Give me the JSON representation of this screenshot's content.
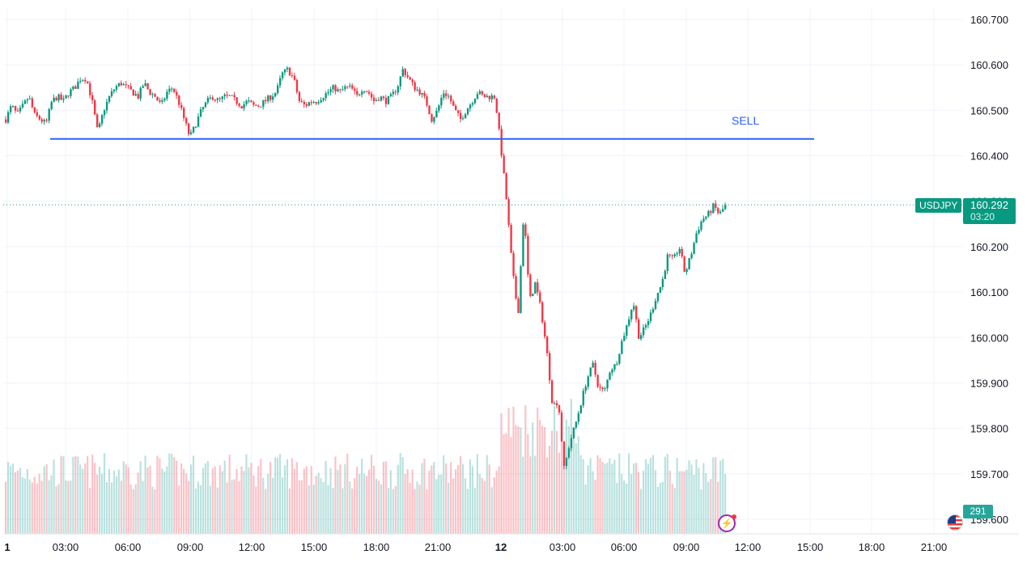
{
  "chart_data": {
    "type": "candlestick",
    "symbol": "USDJPY",
    "last_price": "160.292",
    "countdown": "03:20",
    "last_volume": "291",
    "y_ticks": [
      "160.700",
      "160.600",
      "160.500",
      "160.400",
      "160.300",
      "160.200",
      "160.100",
      "160.000",
      "159.900",
      "159.800",
      "159.700",
      "159.600"
    ],
    "x_ticks": [
      "1",
      "03:00",
      "06:00",
      "09:00",
      "12:00",
      "15:00",
      "18:00",
      "21:00",
      "12",
      "03:00",
      "06:00",
      "09:00",
      "12:00",
      "15:00",
      "18:00",
      "21:00"
    ],
    "x_ticks_bold": [
      "1",
      "12"
    ],
    "ylim": [
      159.59,
      160.72
    ],
    "horizontal_line": {
      "price": 160.437,
      "label": "SELL",
      "color": "#2962ff"
    },
    "price_path": [
      [
        0,
        160.48
      ],
      [
        1,
        160.51
      ],
      [
        2,
        160.49
      ],
      [
        3,
        160.51
      ],
      [
        4,
        160.53
      ],
      [
        5,
        160.49
      ],
      [
        6,
        160.48
      ],
      [
        7,
        160.47
      ],
      [
        8,
        160.52
      ],
      [
        9,
        160.53
      ],
      [
        10,
        160.52
      ],
      [
        11,
        160.54
      ],
      [
        12,
        160.55
      ],
      [
        13,
        160.57
      ],
      [
        14,
        160.57
      ],
      [
        15,
        160.52
      ],
      [
        16,
        160.45
      ],
      [
        17,
        160.5
      ],
      [
        18,
        160.53
      ],
      [
        19,
        160.55
      ],
      [
        20,
        160.56
      ],
      [
        21,
        160.55
      ],
      [
        22,
        160.54
      ],
      [
        23,
        160.53
      ],
      [
        24,
        160.56
      ],
      [
        25,
        160.54
      ],
      [
        26,
        160.53
      ],
      [
        27,
        160.51
      ],
      [
        28,
        160.54
      ],
      [
        29,
        160.55
      ],
      [
        30,
        160.52
      ],
      [
        31,
        160.48
      ],
      [
        32,
        160.44
      ],
      [
        33,
        160.47
      ],
      [
        34,
        160.5
      ],
      [
        35,
        160.52
      ],
      [
        36,
        160.53
      ],
      [
        37,
        160.52
      ],
      [
        38,
        160.53
      ],
      [
        39,
        160.53
      ],
      [
        40,
        160.52
      ],
      [
        41,
        160.51
      ],
      [
        42,
        160.52
      ],
      [
        43,
        160.51
      ],
      [
        44,
        160.51
      ],
      [
        45,
        160.52
      ],
      [
        46,
        160.53
      ],
      [
        47,
        160.54
      ],
      [
        48,
        160.58
      ],
      [
        49,
        160.59
      ],
      [
        50,
        160.57
      ],
      [
        51,
        160.52
      ],
      [
        52,
        160.51
      ],
      [
        53,
        160.52
      ],
      [
        54,
        160.52
      ],
      [
        55,
        160.53
      ],
      [
        56,
        160.54
      ],
      [
        57,
        160.55
      ],
      [
        58,
        160.54
      ],
      [
        59,
        160.55
      ],
      [
        60,
        160.55
      ],
      [
        61,
        160.53
      ],
      [
        62,
        160.55
      ],
      [
        63,
        160.54
      ],
      [
        64,
        160.52
      ],
      [
        65,
        160.53
      ],
      [
        66,
        160.52
      ],
      [
        67,
        160.53
      ],
      [
        68,
        160.55
      ],
      [
        69,
        160.59
      ],
      [
        70,
        160.57
      ],
      [
        71,
        160.55
      ],
      [
        72,
        160.54
      ],
      [
        73,
        160.52
      ],
      [
        74,
        160.48
      ],
      [
        75,
        160.5
      ],
      [
        76,
        160.54
      ],
      [
        77,
        160.53
      ],
      [
        78,
        160.5
      ],
      [
        79,
        160.48
      ],
      [
        80,
        160.5
      ],
      [
        81,
        160.52
      ],
      [
        82,
        160.54
      ],
      [
        83,
        160.53
      ],
      [
        84,
        160.53
      ],
      [
        85,
        160.53
      ],
      [
        86,
        160.42
      ],
      [
        87,
        160.3
      ],
      [
        88,
        160.15
      ],
      [
        89,
        160.05
      ],
      [
        90,
        160.28
      ],
      [
        91,
        160.08
      ],
      [
        92,
        160.12
      ],
      [
        93,
        160.06
      ],
      [
        94,
        159.97
      ],
      [
        95,
        159.85
      ],
      [
        96,
        159.86
      ],
      [
        97,
        159.71
      ],
      [
        98,
        159.77
      ],
      [
        99,
        159.81
      ],
      [
        100,
        159.86
      ],
      [
        101,
        159.91
      ],
      [
        102,
        159.94
      ],
      [
        103,
        159.89
      ],
      [
        104,
        159.88
      ],
      [
        105,
        159.93
      ],
      [
        106,
        159.94
      ],
      [
        107,
        159.99
      ],
      [
        108,
        160.03
      ],
      [
        109,
        160.08
      ],
      [
        110,
        160.0
      ],
      [
        111,
        160.02
      ],
      [
        112,
        160.05
      ],
      [
        113,
        160.09
      ],
      [
        114,
        160.12
      ],
      [
        115,
        160.18
      ],
      [
        116,
        160.17
      ],
      [
        117,
        160.2
      ],
      [
        118,
        160.14
      ],
      [
        119,
        160.18
      ],
      [
        120,
        160.23
      ],
      [
        121,
        160.26
      ],
      [
        122,
        160.27
      ],
      [
        123,
        160.29
      ],
      [
        124,
        160.27
      ],
      [
        125,
        160.29
      ]
    ],
    "candle_count_reference": 125
  }
}
